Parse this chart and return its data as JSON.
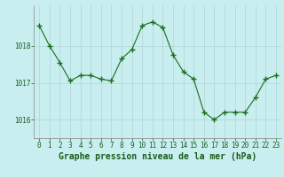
{
  "x": [
    0,
    1,
    2,
    3,
    4,
    5,
    6,
    7,
    8,
    9,
    10,
    11,
    12,
    13,
    14,
    15,
    16,
    17,
    18,
    19,
    20,
    21,
    22,
    23
  ],
  "y": [
    1018.55,
    1018.0,
    1017.55,
    1017.05,
    1017.2,
    1017.2,
    1017.1,
    1017.05,
    1017.65,
    1017.9,
    1018.55,
    1018.65,
    1018.5,
    1017.75,
    1017.3,
    1017.1,
    1016.2,
    1016.0,
    1016.2,
    1016.2,
    1016.2,
    1016.6,
    1017.1,
    1017.2
  ],
  "line_color": "#1a6e1a",
  "marker": "P",
  "marker_size": 3,
  "bg_color": "#c8eef0",
  "grid_color": "#b0d4d8",
  "xlabel": "Graphe pression niveau de la mer (hPa)",
  "xlabel_fontsize": 7,
  "tick_fontsize": 5.5,
  "ytick_labels": [
    "1016",
    "1017",
    "1018"
  ],
  "ytick_values": [
    1016,
    1017,
    1018
  ],
  "ylim": [
    1015.5,
    1019.1
  ],
  "xlim": [
    -0.5,
    23.5
  ]
}
